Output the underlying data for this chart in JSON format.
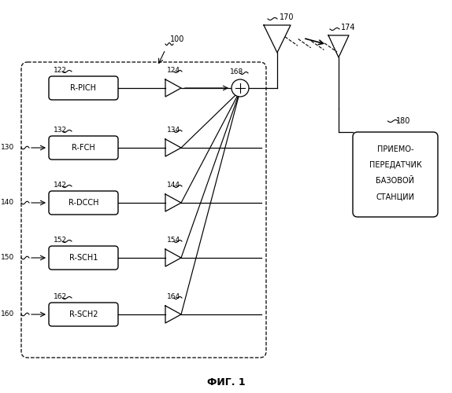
{
  "title": "ФИГ. 1",
  "bg_color": "#ffffff",
  "channels": [
    "R-PICH",
    "R-FCH",
    "R-DCCH",
    "R-SCH1",
    "R-SCH2"
  ],
  "channel_labels": [
    "122",
    "132",
    "142",
    "152",
    "162"
  ],
  "amp_labels": [
    "124",
    "134",
    "144",
    "154",
    "164"
  ],
  "input_labels": [
    "",
    "130",
    "140",
    "150",
    "160"
  ],
  "summer_label": "168",
  "antenna1_label": "170",
  "antenna2_label": "174",
  "box_label": "180",
  "system_label": "100",
  "box_text": [
    "ПРИЕМО-",
    "ПЕРЕДАТЧИК",
    "БАЗОВОЙ",
    "СТАНЦИИ"
  ]
}
